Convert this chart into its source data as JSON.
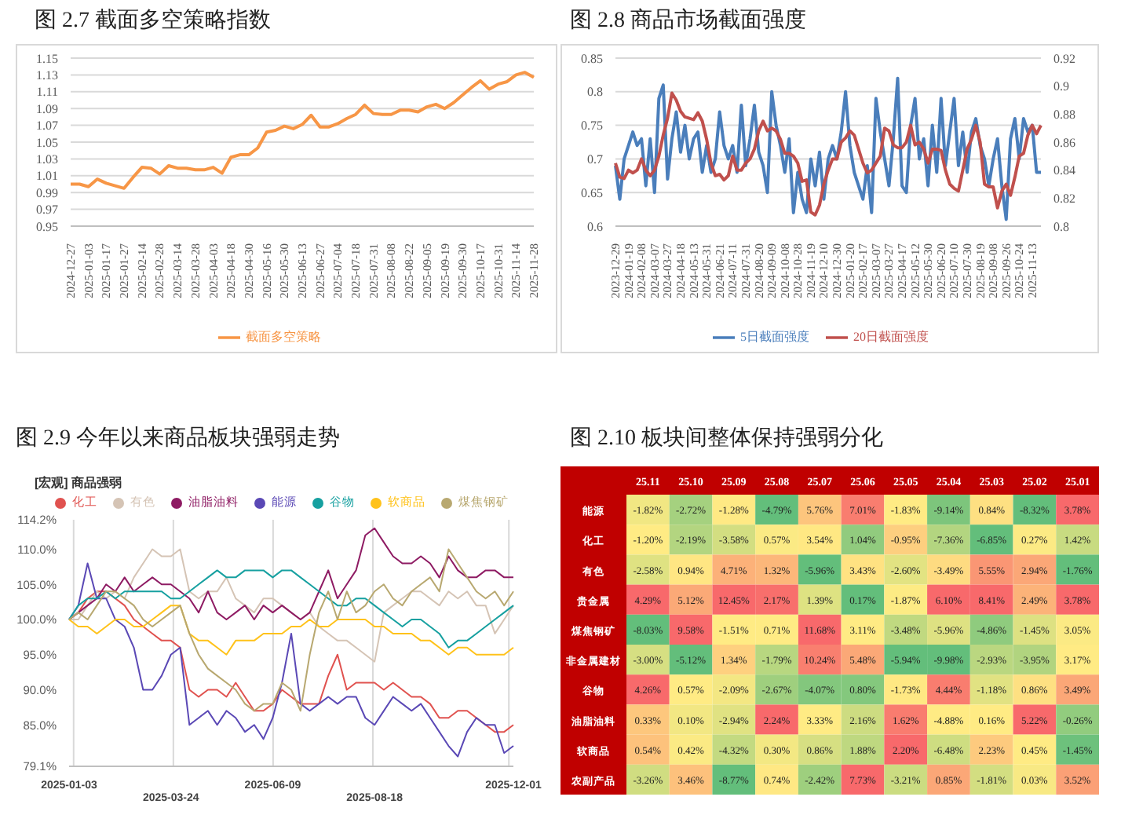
{
  "chart_data": [
    {
      "type": "line",
      "title": "图 2.7 截面多空策略指数",
      "marker": "none",
      "line_style": "solid",
      "grid": "y",
      "legend": "bottom",
      "categories": [
        "2024-12-27",
        null,
        "2025-01-03",
        null,
        "2025-01-17",
        null,
        "2025-01-27",
        null,
        "2025-02-14",
        null,
        "2025-02-28",
        null,
        "2025-03-14",
        null,
        "2025-03-28",
        null,
        "2025-04-03",
        null,
        "2025-04-18",
        null,
        "2025-04-30",
        null,
        "2025-05-16",
        null,
        "2025-05-30",
        null,
        "2025-06-13",
        null,
        "2025-06-27",
        null,
        "2025-07-04",
        null,
        "2025-07-18",
        null,
        "2025-07-31",
        null,
        "2025-08-08",
        null,
        "2025-08-22",
        null,
        "2025-09-05",
        null,
        "2025-09-19",
        null,
        "2025-09-30",
        null,
        "2025-10-17",
        null,
        "2025-10-31",
        null,
        "2025-11-14",
        null,
        "2025-11-28"
      ],
      "ylim": [
        0.95,
        1.15
      ],
      "yticks": [
        0.95,
        0.97,
        0.99,
        1.01,
        1.03,
        1.05,
        1.07,
        1.09,
        1.11,
        1.13,
        1.15
      ],
      "series": [
        {
          "name": "截面多空策略",
          "color": "#f79646",
          "values": [
            1.0,
            1.0,
            0.997,
            1.006,
            1.001,
            0.998,
            0.995,
            1.008,
            1.02,
            1.019,
            1.012,
            1.022,
            1.019,
            1.019,
            1.017,
            1.017,
            1.02,
            1.013,
            1.032,
            1.035,
            1.035,
            1.043,
            1.062,
            1.064,
            1.069,
            1.066,
            1.071,
            1.082,
            1.068,
            1.068,
            1.072,
            1.078,
            1.083,
            1.094,
            1.084,
            1.083,
            1.083,
            1.088,
            1.088,
            1.086,
            1.092,
            1.095,
            1.09,
            1.097,
            1.106,
            1.115,
            1.123,
            1.113,
            1.119,
            1.122,
            1.13,
            1.133,
            1.127
          ]
        }
      ]
    },
    {
      "type": "line",
      "title": "图 2.8 商品市场截面强度",
      "marker": "none",
      "line_style": "solid",
      "grid": "y",
      "legend": "bottom",
      "categories": [
        "2023-12-29",
        null,
        null,
        "2024-01-19",
        null,
        null,
        "2024-02-08",
        null,
        null,
        "2024-03-07",
        null,
        null,
        "2024-03-27",
        null,
        null,
        "2024-04-18",
        null,
        null,
        "2024-05-13",
        null,
        null,
        "2024-05-31",
        null,
        null,
        "2024-06-21",
        null,
        null,
        "2024-07-11",
        null,
        null,
        "2024-07-31",
        null,
        null,
        "2024-08-20",
        null,
        null,
        "2024-09-09",
        null,
        null,
        "2024-10-08",
        null,
        null,
        "2024-10-28",
        null,
        null,
        "2024-11-19",
        null,
        null,
        "2024-12-10",
        null,
        null,
        "2024-12-30",
        null,
        null,
        "2025-01-20",
        null,
        null,
        "2025-02-17",
        null,
        null,
        "2025-03-07",
        null,
        null,
        "2025-03-27",
        null,
        null,
        "2025-04-17",
        null,
        null,
        "2025-05-12",
        null,
        null,
        "2025-05-30",
        null,
        null,
        "2025-06-20",
        null,
        null,
        "2025-07-10",
        null,
        null,
        "2025-07-30",
        null,
        null,
        "2025-08-19",
        null,
        null,
        "2025-09-08",
        null,
        null,
        "2025-09-26",
        null,
        null,
        "2025-10-24",
        null,
        null,
        "2025-11-13",
        null,
        null
      ],
      "ylim": [
        0.6,
        0.85
      ],
      "yticks": [
        0.6,
        0.65,
        0.7,
        0.75,
        0.8,
        0.85
      ],
      "y2lim": [
        0.8,
        0.92
      ],
      "y2ticks": [
        0.8,
        0.82,
        0.84,
        0.86,
        0.88,
        0.9,
        0.92
      ],
      "series": [
        {
          "name": "5日截面强度",
          "color": "#4a7ebb",
          "values": [
            0.69,
            0.64,
            0.7,
            0.72,
            0.74,
            0.72,
            0.73,
            0.66,
            0.73,
            0.65,
            0.79,
            0.81,
            0.67,
            0.73,
            0.77,
            0.71,
            0.75,
            0.7,
            0.73,
            0.74,
            0.68,
            0.72,
            0.68,
            0.7,
            0.77,
            0.72,
            0.7,
            0.72,
            0.68,
            0.78,
            0.69,
            0.73,
            0.78,
            0.71,
            0.69,
            0.65,
            0.8,
            0.75,
            0.72,
            0.68,
            0.73,
            0.62,
            0.68,
            0.64,
            0.62,
            0.7,
            0.66,
            0.71,
            0.64,
            0.7,
            0.72,
            0.7,
            0.74,
            0.8,
            0.72,
            0.68,
            0.66,
            0.64,
            0.69,
            0.62,
            0.79,
            0.74,
            0.7,
            0.66,
            0.73,
            0.82,
            0.66,
            0.65,
            0.75,
            0.79,
            0.7,
            0.73,
            0.66,
            0.75,
            0.68,
            0.79,
            0.69,
            0.74,
            0.79,
            0.69,
            0.74,
            0.68,
            0.74,
            0.76,
            0.72,
            0.7,
            0.66,
            0.7,
            0.73,
            0.66,
            0.61,
            0.73,
            0.76,
            0.7,
            0.76,
            0.74,
            0.75,
            0.68,
            0.68
          ]
        },
        {
          "name": "20日截面强度",
          "color": "#c0504d",
          "axis": "y2",
          "values": [
            0.845,
            0.835,
            0.834,
            0.84,
            0.838,
            0.84,
            0.848,
            0.84,
            0.836,
            0.84,
            0.85,
            0.865,
            0.877,
            0.895,
            0.89,
            0.882,
            0.878,
            0.877,
            0.876,
            0.881,
            0.875,
            0.862,
            0.845,
            0.836,
            0.837,
            0.833,
            0.836,
            0.85,
            0.84,
            0.84,
            0.845,
            0.848,
            0.855,
            0.868,
            0.875,
            0.868,
            0.87,
            0.868,
            0.862,
            0.852,
            0.852,
            0.85,
            0.845,
            0.832,
            0.833,
            0.81,
            0.808,
            0.815,
            0.83,
            0.84,
            0.848,
            0.848,
            0.86,
            0.863,
            0.868,
            0.865,
            0.855,
            0.845,
            0.838,
            0.84,
            0.845,
            0.85,
            0.87,
            0.868,
            0.858,
            0.856,
            0.856,
            0.86,
            0.872,
            0.858,
            0.86,
            0.855,
            0.845,
            0.855,
            0.855,
            0.854,
            0.84,
            0.83,
            0.827,
            0.825,
            0.84,
            0.855,
            0.862,
            0.872,
            0.86,
            0.83,
            0.828,
            0.828,
            0.813,
            0.825,
            0.83,
            0.822,
            0.835,
            0.85,
            0.852,
            0.865,
            0.872,
            0.866,
            0.872
          ]
        }
      ]
    },
    {
      "type": "line",
      "title": "图 2.9 今年以来商品板块强弱走势",
      "subtitle": "[宏观] 商品强弱",
      "marker": "none",
      "line_style": "solid",
      "grid": "x",
      "legend": "top",
      "categories": [
        "2025-01-03",
        null,
        null,
        null,
        null,
        null,
        null,
        null,
        null,
        null,
        null,
        "2025-03-24",
        null,
        null,
        null,
        null,
        null,
        null,
        null,
        null,
        null,
        null,
        "2025-06-09",
        null,
        null,
        null,
        null,
        null,
        null,
        null,
        null,
        null,
        null,
        "2025-08-18",
        null,
        null,
        null,
        null,
        null,
        null,
        null,
        null,
        null,
        null,
        null,
        null,
        null,
        null,
        "2025-12-01"
      ],
      "ylim": [
        79.1,
        114.2
      ],
      "yticks": [
        {
          "value": 79.1,
          "label": "79.1%"
        },
        {
          "value": 85,
          "label": "85.0%"
        },
        {
          "value": 90,
          "label": "90.0%"
        },
        {
          "value": 95,
          "label": "95.0%"
        },
        {
          "value": 100,
          "label": "100.0%"
        },
        {
          "value": 105,
          "label": "105.0%"
        },
        {
          "value": 110,
          "label": "110.0%"
        },
        {
          "value": 114.2,
          "label": "114.2%"
        }
      ],
      "series": [
        {
          "name": "化工",
          "color": "#e0524f",
          "values": [
            100,
            101,
            103,
            104,
            104,
            103,
            102,
            100,
            99,
            98,
            97,
            97,
            96,
            90,
            89,
            90,
            90,
            89,
            91,
            89,
            87,
            87,
            88,
            90,
            89,
            88,
            88,
            88,
            92,
            95,
            90,
            91,
            91,
            91,
            90,
            91,
            90,
            89,
            89,
            88,
            86,
            86,
            87,
            87,
            86,
            85,
            84,
            84,
            85
          ]
        },
        {
          "name": "有色",
          "color": "#d5c4b5",
          "values": [
            100,
            100,
            102,
            104,
            103,
            104,
            103,
            106,
            108,
            110,
            109,
            109,
            110,
            104,
            103,
            104,
            104,
            106,
            103,
            102,
            101,
            103,
            103,
            102,
            101,
            100,
            101,
            99,
            98,
            97,
            97,
            96,
            95,
            94,
            101,
            102,
            103,
            104,
            104,
            103,
            102,
            104,
            103,
            104,
            102,
            102,
            98,
            100,
            102
          ]
        },
        {
          "name": "油脂油料",
          "color": "#8e1b63",
          "values": [
            100,
            101,
            102,
            103,
            105,
            104,
            106,
            104,
            105,
            106,
            105,
            105,
            104,
            103,
            101,
            104,
            101,
            100,
            101,
            102,
            100,
            102,
            101,
            102,
            101,
            100,
            101,
            104,
            107,
            103,
            105,
            107,
            112,
            113,
            111,
            109,
            108,
            108,
            109,
            108,
            106,
            109,
            107,
            106,
            106,
            107,
            107,
            106,
            106
          ]
        },
        {
          "name": "能源",
          "color": "#5a48b5",
          "values": [
            100,
            102,
            108,
            103,
            103,
            100,
            99,
            96,
            90,
            90,
            92,
            95,
            96,
            85,
            86,
            87,
            85,
            87,
            86,
            84,
            85,
            83,
            86,
            91,
            98,
            88,
            87,
            88,
            89,
            88,
            89,
            89,
            86,
            85,
            87,
            89,
            88,
            87,
            88,
            86,
            84,
            82,
            80.5,
            84,
            86,
            85,
            85,
            81,
            82
          ]
        },
        {
          "name": "谷物",
          "color": "#16a0a0",
          "values": [
            100,
            102,
            103,
            103,
            104,
            103,
            104,
            104,
            104,
            104,
            104,
            103,
            103,
            104,
            105,
            106,
            107,
            106,
            106,
            107,
            107,
            107,
            106,
            107,
            107,
            106,
            105,
            104,
            103,
            102,
            102,
            103,
            103,
            102,
            101,
            100,
            99,
            100,
            100,
            99,
            98,
            96,
            97,
            97,
            98,
            99,
            100,
            101,
            102
          ]
        },
        {
          "name": "软商品",
          "color": "#ffc21a",
          "values": [
            100,
            99,
            99,
            98,
            99,
            100,
            100,
            99,
            99,
            100,
            101,
            102,
            102,
            98,
            97,
            97,
            96,
            95,
            97,
            97,
            97,
            98,
            98,
            98,
            99,
            99,
            100,
            99,
            99,
            100,
            100,
            100,
            100,
            99,
            99,
            98,
            98,
            98,
            97,
            97,
            96,
            95,
            96,
            96,
            95,
            95,
            95,
            95,
            96
          ]
        },
        {
          "name": "煤焦钢矿",
          "color": "#b8a870",
          "values": [
            100,
            101,
            100,
            102,
            104,
            104,
            103,
            102,
            100,
            99,
            100,
            101,
            102,
            98,
            95,
            93,
            92,
            91,
            90,
            88,
            87,
            88,
            88,
            91,
            90,
            87,
            95,
            101,
            104,
            100,
            104,
            101,
            102,
            104,
            105,
            103,
            102,
            104,
            105,
            106,
            104,
            110,
            108,
            106,
            104,
            103,
            104,
            102,
            104
          ]
        }
      ]
    },
    {
      "type": "heatmap",
      "title": "图 2.10 板块间整体保持强弱分化",
      "categories": [
        "25.11",
        "25.10",
        "25.09",
        "25.08",
        "25.07",
        "25.06",
        "25.05",
        "25.04",
        "25.03",
        "25.02",
        "25.01"
      ],
      "y_categories": [
        "能源",
        "化工",
        "有色",
        "贵金属",
        "煤焦钢矿",
        "非金属建材",
        "谷物",
        "油脂油料",
        "软商品",
        "农副产品"
      ],
      "cells": [
        [
          -1.82,
          -2.72,
          -1.28,
          -4.79,
          5.76,
          7.01,
          -1.83,
          -9.14,
          0.84,
          -8.32,
          3.78
        ],
        [
          -1.2,
          -2.19,
          -3.58,
          0.57,
          3.54,
          1.04,
          -0.95,
          -7.36,
          -6.85,
          0.27,
          1.42
        ],
        [
          -2.58,
          0.94,
          4.71,
          1.32,
          -5.96,
          3.43,
          -2.6,
          -3.49,
          5.55,
          2.94,
          -1.76
        ],
        [
          4.29,
          5.12,
          12.45,
          2.17,
          1.39,
          0.17,
          -1.87,
          6.1,
          8.41,
          2.49,
          3.78
        ],
        [
          -8.03,
          9.58,
          -1.51,
          0.71,
          11.68,
          3.11,
          -3.48,
          -5.96,
          -4.86,
          -1.45,
          3.05
        ],
        [
          -3.0,
          -5.12,
          1.34,
          -1.79,
          10.24,
          5.48,
          -5.94,
          -9.98,
          -2.93,
          -3.95,
          3.17
        ],
        [
          4.26,
          0.57,
          -2.09,
          -2.67,
          -4.07,
          0.8,
          -1.73,
          4.44,
          -1.18,
          0.86,
          3.49
        ],
        [
          0.33,
          0.1,
          -2.94,
          2.24,
          3.33,
          2.16,
          1.62,
          -4.88,
          0.16,
          5.22,
          -0.26
        ],
        [
          0.54,
          0.42,
          -4.32,
          0.3,
          0.86,
          1.88,
          2.2,
          -6.48,
          2.23,
          0.45,
          -1.45
        ],
        [
          -3.26,
          3.46,
          -8.77,
          0.74,
          -2.42,
          7.73,
          -3.21,
          0.85,
          -1.81,
          0.03,
          3.52
        ]
      ],
      "cell_labels": [
        [
          "-1.82%",
          "-2.72%",
          "-1.28%",
          "-4.79%",
          "5.76%",
          "7.01%",
          "-1.83%",
          "-9.14%",
          "0.84%",
          "-8.32%",
          "3.78%"
        ],
        [
          "-1.20%",
          "-2.19%",
          "-3.58%",
          "0.57%",
          "3.54%",
          "1.04%",
          "-0.95%",
          "-7.36%",
          "-6.85%",
          "0.27%",
          "1.42%"
        ],
        [
          "-2.58%",
          "0.94%",
          "4.71%",
          "1.32%",
          "-5.96%",
          "3.43%",
          "-2.60%",
          "-3.49%",
          "5.55%",
          "2.94%",
          "-1.76%"
        ],
        [
          "4.29%",
          "5.12%",
          "12.45%",
          "2.17%",
          "1.39%",
          "0.17%",
          "-1.87%",
          "6.10%",
          "8.41%",
          "2.49%",
          "3.78%"
        ],
        [
          "-8.03%",
          "9.58%",
          "-1.51%",
          "0.71%",
          "11.68%",
          "3.11%",
          "-3.48%",
          "-5.96%",
          "-4.86%",
          "-1.45%",
          "3.05%"
        ],
        [
          "-3.00%",
          "-5.12%",
          "1.34%",
          "-1.79%",
          "10.24%",
          "5.48%",
          "-5.94%",
          "-9.98%",
          "-2.93%",
          "-3.95%",
          "3.17%"
        ],
        [
          "4.26%",
          "0.57%",
          "-2.09%",
          "-2.67%",
          "-4.07%",
          "0.80%",
          "-1.73%",
          "4.44%",
          "-1.18%",
          "0.86%",
          "3.49%"
        ],
        [
          "0.33%",
          "0.10%",
          "-2.94%",
          "2.24%",
          "3.33%",
          "2.16%",
          "1.62%",
          "-4.88%",
          "0.16%",
          "5.22%",
          "-0.26%"
        ],
        [
          "0.54%",
          "0.42%",
          "-4.32%",
          "0.30%",
          "0.86%",
          "1.88%",
          "2.20%",
          "-6.48%",
          "2.23%",
          "0.45%",
          "-1.45%"
        ],
        [
          "-3.26%",
          "3.46%",
          "-8.77%",
          "0.74%",
          "-2.42%",
          "7.73%",
          "-3.21%",
          "0.85%",
          "-1.81%",
          "0.03%",
          "3.52%"
        ]
      ]
    }
  ]
}
